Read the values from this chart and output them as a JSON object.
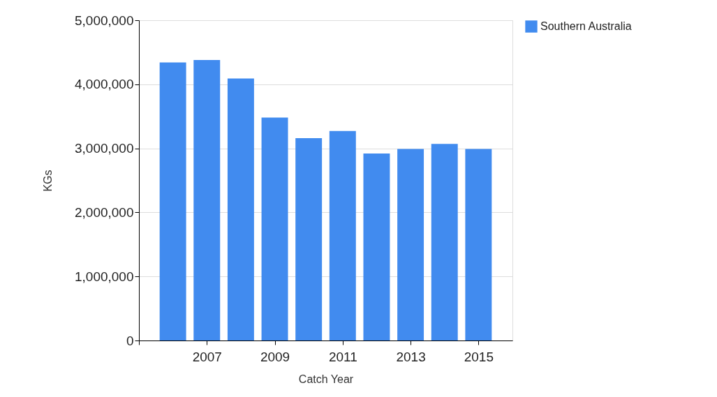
{
  "chart_data": {
    "type": "bar",
    "xlabel": "Catch Year",
    "ylabel": "KGs",
    "x": [
      2006,
      2007,
      2008,
      2009,
      2010,
      2011,
      2012,
      2013,
      2014,
      2015
    ],
    "series": [
      {
        "name": "Southern Australia",
        "color": "#418bef",
        "values": [
          4340000,
          4380000,
          4090000,
          3480000,
          3160000,
          3270000,
          2920000,
          2990000,
          3070000,
          2990000
        ]
      }
    ],
    "xlim": [
      2005,
      2016
    ],
    "xticks": [
      {
        "value": 2005,
        "label": null
      },
      2007,
      2009,
      2011,
      2013,
      2015
    ],
    "ylim": [
      0,
      5000000
    ],
    "yticks": [
      0,
      {
        "value": 1000000,
        "label": "1,000,000"
      },
      {
        "value": 2000000,
        "label": "2,000,000"
      },
      {
        "value": 3000000,
        "label": "3,000,000"
      },
      {
        "value": 4000000,
        "label": "4,000,000"
      },
      {
        "value": 5000000,
        "label": "5,000,000"
      }
    ],
    "grid": "y",
    "legend": "top right"
  }
}
